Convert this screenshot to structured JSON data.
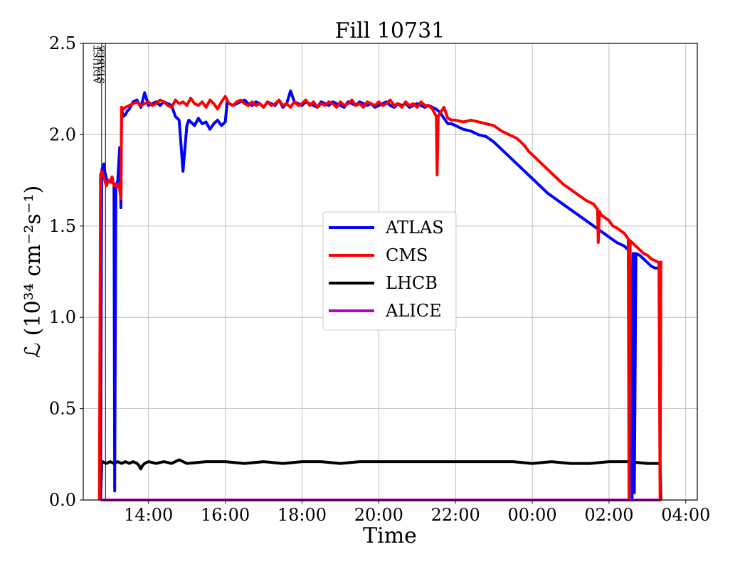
{
  "chart_data": {
    "type": "line",
    "title": "Fill 10731",
    "xlabel": "Time",
    "ylabel": "ℒ (10³⁴ cm⁻²s⁻¹)",
    "x_unit": "hours from 12:00 on the first day",
    "xlim": [
      0.3,
      16.3
    ],
    "ylim": [
      0.0,
      2.5
    ],
    "x_ticks": [
      {
        "v": 2,
        "label": "14:00"
      },
      {
        "v": 4,
        "label": "16:00"
      },
      {
        "v": 6,
        "label": "18:00"
      },
      {
        "v": 8,
        "label": "20:00"
      },
      {
        "v": 10,
        "label": "22:00"
      },
      {
        "v": 12,
        "label": "00:00"
      },
      {
        "v": 14,
        "label": "02:00"
      },
      {
        "v": 16,
        "label": "04:00"
      }
    ],
    "y_ticks": [
      {
        "v": 0.0,
        "label": "0.0"
      },
      {
        "v": 0.5,
        "label": "0.5"
      },
      {
        "v": 1.0,
        "label": "1.0"
      },
      {
        "v": 1.5,
        "label": "1.5"
      },
      {
        "v": 2.0,
        "label": "2.0"
      },
      {
        "v": 2.5,
        "label": "2.5"
      }
    ],
    "grid": true,
    "legend_position": "center",
    "markers": [
      {
        "x": 0.78,
        "label": "ADJUST"
      },
      {
        "x": 0.88,
        "label": "STABLE"
      }
    ],
    "series": [
      {
        "name": "ATLAS",
        "color": "#0000ff",
        "x": [
          0.75,
          0.78,
          0.8,
          0.84,
          0.86,
          0.9,
          0.95,
          1.0,
          1.05,
          1.1,
          1.12,
          1.15,
          1.17,
          1.2,
          1.25,
          1.28,
          1.3,
          1.32,
          1.35,
          1.4,
          1.45,
          1.5,
          1.6,
          1.7,
          1.8,
          1.9,
          2.0,
          2.1,
          2.2,
          2.3,
          2.4,
          2.5,
          2.6,
          2.7,
          2.8,
          2.9,
          3.0,
          3.05,
          3.1,
          3.2,
          3.3,
          3.4,
          3.5,
          3.6,
          3.7,
          3.8,
          3.9,
          4.0,
          4.05,
          4.1,
          4.2,
          4.3,
          4.4,
          4.5,
          4.6,
          4.7,
          4.8,
          4.9,
          5.0,
          5.1,
          5.2,
          5.3,
          5.4,
          5.5,
          5.6,
          5.7,
          5.8,
          5.9,
          6.0,
          6.1,
          6.2,
          6.3,
          6.4,
          6.5,
          6.6,
          6.7,
          6.8,
          6.9,
          7.0,
          7.1,
          7.2,
          7.3,
          7.4,
          7.5,
          7.6,
          7.7,
          7.8,
          7.9,
          8.0,
          8.1,
          8.2,
          8.3,
          8.4,
          8.5,
          8.6,
          8.7,
          8.8,
          8.9,
          9.0,
          9.1,
          9.2,
          9.3,
          9.4,
          9.5,
          9.6,
          9.7,
          9.8,
          9.9,
          10.0,
          10.2,
          10.4,
          10.6,
          10.8,
          11.0,
          11.2,
          11.4,
          11.6,
          11.8,
          12.0,
          12.2,
          12.4,
          12.6,
          12.8,
          13.0,
          13.2,
          13.4,
          13.6,
          13.8,
          14.0,
          14.2,
          14.4,
          14.5,
          14.55,
          14.6,
          14.63,
          14.66,
          14.7,
          14.8,
          14.9,
          15.0,
          15.1,
          15.2,
          15.3,
          15.35
        ],
        "y": [
          0.0,
          1.8,
          1.82,
          1.84,
          1.8,
          1.76,
          1.75,
          1.74,
          1.74,
          1.73,
          0.05,
          1.73,
          1.72,
          1.75,
          1.93,
          1.6,
          2.15,
          2.12,
          2.1,
          2.11,
          2.13,
          2.14,
          2.18,
          2.19,
          2.15,
          2.23,
          2.16,
          2.17,
          2.18,
          2.16,
          2.18,
          2.17,
          2.16,
          2.1,
          2.08,
          1.8,
          2.05,
          2.08,
          2.07,
          2.05,
          2.09,
          2.06,
          2.07,
          2.03,
          2.06,
          2.08,
          2.05,
          2.07,
          2.18,
          2.17,
          2.16,
          2.17,
          2.18,
          2.19,
          2.17,
          2.16,
          2.18,
          2.17,
          2.15,
          2.18,
          2.17,
          2.16,
          2.19,
          2.15,
          2.17,
          2.24,
          2.18,
          2.17,
          2.16,
          2.18,
          2.17,
          2.16,
          2.15,
          2.18,
          2.17,
          2.16,
          2.18,
          2.17,
          2.16,
          2.15,
          2.18,
          2.17,
          2.16,
          2.18,
          2.17,
          2.16,
          2.17,
          2.15,
          2.16,
          2.17,
          2.18,
          2.16,
          2.15,
          2.17,
          2.16,
          2.17,
          2.15,
          2.16,
          2.17,
          2.16,
          2.15,
          2.16,
          2.15,
          2.14,
          2.12,
          2.09,
          2.06,
          2.06,
          2.05,
          2.03,
          2.02,
          2.0,
          1.99,
          1.96,
          1.92,
          1.88,
          1.84,
          1.8,
          1.76,
          1.72,
          1.68,
          1.65,
          1.62,
          1.59,
          1.56,
          1.53,
          1.5,
          1.47,
          1.44,
          1.41,
          1.39,
          1.37,
          1.36,
          0.0,
          1.35,
          0.04,
          1.35,
          1.34,
          1.32,
          1.3,
          1.28,
          1.27,
          1.27,
          1.26
        ]
      },
      {
        "name": "CMS",
        "color": "#ff0000",
        "x": [
          0.72,
          0.75,
          0.78,
          0.8,
          0.84,
          0.86,
          0.9,
          0.95,
          1.0,
          1.05,
          1.1,
          1.15,
          1.2,
          1.25,
          1.28,
          1.3,
          1.35,
          1.4,
          1.5,
          1.6,
          1.7,
          1.8,
          1.9,
          2.0,
          2.1,
          2.2,
          2.3,
          2.4,
          2.5,
          2.6,
          2.7,
          2.8,
          2.9,
          3.0,
          3.1,
          3.2,
          3.3,
          3.4,
          3.5,
          3.6,
          3.7,
          3.8,
          3.9,
          4.0,
          4.1,
          4.2,
          4.3,
          4.4,
          4.5,
          4.6,
          4.7,
          4.8,
          4.9,
          5.0,
          5.1,
          5.2,
          5.3,
          5.4,
          5.5,
          5.6,
          5.7,
          5.8,
          5.9,
          6.0,
          6.1,
          6.2,
          6.3,
          6.4,
          6.5,
          6.6,
          6.7,
          6.8,
          6.9,
          7.0,
          7.1,
          7.2,
          7.3,
          7.4,
          7.5,
          7.6,
          7.7,
          7.8,
          7.9,
          8.0,
          8.1,
          8.2,
          8.3,
          8.4,
          8.5,
          8.6,
          8.7,
          8.8,
          8.9,
          9.0,
          9.1,
          9.2,
          9.3,
          9.4,
          9.45,
          9.5,
          9.52,
          9.55,
          9.6,
          9.7,
          9.8,
          9.9,
          10.0,
          10.2,
          10.4,
          10.6,
          10.8,
          11.0,
          11.2,
          11.4,
          11.6,
          11.8,
          11.9,
          12.0,
          12.2,
          12.4,
          12.6,
          12.8,
          13.0,
          13.2,
          13.4,
          13.6,
          13.7,
          13.72,
          13.75,
          13.8,
          14.0,
          14.1,
          14.2,
          14.4,
          14.5,
          14.52,
          14.55,
          14.6,
          14.7,
          14.8,
          14.9,
          15.0,
          15.1,
          15.2,
          15.3,
          15.33,
          15.35
        ],
        "y": [
          0.0,
          1.78,
          1.8,
          1.79,
          1.77,
          1.75,
          1.72,
          1.75,
          1.74,
          1.77,
          1.72,
          1.72,
          1.73,
          1.7,
          1.65,
          2.15,
          2.14,
          2.15,
          2.16,
          2.17,
          2.18,
          2.16,
          2.17,
          2.18,
          2.16,
          2.17,
          2.19,
          2.18,
          2.16,
          2.15,
          2.19,
          2.17,
          2.18,
          2.16,
          2.2,
          2.17,
          2.16,
          2.18,
          2.15,
          2.19,
          2.17,
          2.14,
          2.18,
          2.21,
          2.17,
          2.16,
          2.18,
          2.19,
          2.17,
          2.16,
          2.18,
          2.16,
          2.17,
          2.15,
          2.18,
          2.16,
          2.17,
          2.19,
          2.16,
          2.17,
          2.15,
          2.18,
          2.16,
          2.17,
          2.19,
          2.16,
          2.18,
          2.15,
          2.17,
          2.16,
          2.18,
          2.17,
          2.15,
          2.18,
          2.16,
          2.17,
          2.19,
          2.16,
          2.17,
          2.15,
          2.18,
          2.17,
          2.16,
          2.18,
          2.16,
          2.17,
          2.19,
          2.16,
          2.17,
          2.15,
          2.18,
          2.16,
          2.17,
          2.15,
          2.18,
          2.16,
          2.16,
          2.14,
          2.12,
          2.1,
          1.78,
          2.1,
          2.12,
          2.15,
          2.09,
          2.08,
          2.08,
          2.07,
          2.08,
          2.07,
          2.06,
          2.05,
          2.02,
          2.0,
          1.98,
          1.94,
          1.91,
          1.89,
          1.85,
          1.81,
          1.77,
          1.73,
          1.7,
          1.67,
          1.64,
          1.62,
          1.59,
          1.41,
          1.58,
          1.56,
          1.53,
          1.5,
          1.49,
          1.46,
          1.43,
          0.01,
          1.42,
          1.41,
          1.39,
          1.37,
          1.35,
          1.34,
          1.32,
          1.31,
          1.3,
          0.0,
          1.31
        ]
      },
      {
        "name": "LHCB",
        "color": "#000000",
        "x": [
          0.75,
          0.78,
          0.8,
          0.9,
          1.0,
          1.1,
          1.2,
          1.3,
          1.4,
          1.5,
          1.6,
          1.7,
          1.75,
          1.8,
          1.85,
          1.9,
          2.0,
          2.2,
          2.4,
          2.6,
          2.8,
          3.0,
          3.5,
          4.0,
          4.5,
          5.0,
          5.5,
          6.0,
          6.5,
          7.0,
          7.5,
          8.0,
          8.5,
          9.0,
          9.5,
          10.0,
          10.5,
          11.0,
          11.5,
          12.0,
          12.5,
          13.0,
          13.5,
          14.0,
          14.5,
          15.0,
          15.2,
          15.33,
          15.35
        ],
        "y": [
          0.0,
          0.2,
          0.21,
          0.2,
          0.21,
          0.2,
          0.21,
          0.2,
          0.21,
          0.2,
          0.21,
          0.2,
          0.19,
          0.17,
          0.19,
          0.2,
          0.21,
          0.2,
          0.21,
          0.2,
          0.22,
          0.2,
          0.21,
          0.21,
          0.2,
          0.21,
          0.2,
          0.21,
          0.21,
          0.2,
          0.21,
          0.21,
          0.21,
          0.21,
          0.21,
          0.21,
          0.21,
          0.21,
          0.21,
          0.2,
          0.21,
          0.2,
          0.2,
          0.21,
          0.21,
          0.2,
          0.2,
          0.2,
          0.0
        ]
      },
      {
        "name": "ALICE",
        "color": "#bf00bf",
        "x": [
          0.75,
          15.35
        ],
        "y": [
          0.0,
          0.0
        ]
      }
    ]
  }
}
